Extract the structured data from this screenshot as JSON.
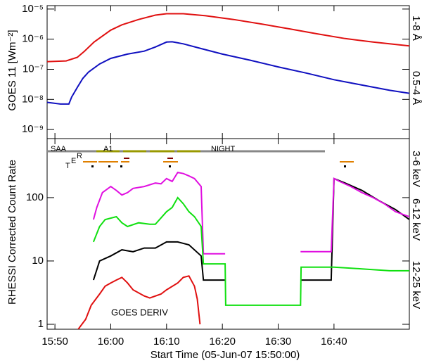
{
  "chart_data": [
    {
      "type": "line",
      "ylabel": "GOES 11 [Wm⁻²]",
      "log_y": true,
      "xlim": [
        -1.4,
        63.5
      ],
      "xticks": [
        0,
        10,
        20,
        30,
        40,
        50
      ],
      "ylim": [
        5e-10,
        1.3e-05
      ],
      "yticks": [
        {
          "value": 1e-09,
          "label": "10⁻⁹"
        },
        {
          "value": 1e-08,
          "label": "10⁻⁸"
        },
        {
          "value": 1e-07,
          "label": "10⁻⁷"
        },
        {
          "value": 1e-06,
          "label": "10⁻⁶"
        },
        {
          "value": 1e-05,
          "label": "10⁻⁵"
        }
      ],
      "series": [
        {
          "name": "1-8 Å",
          "color": "#e01010",
          "x": [
            -1.4,
            2,
            4,
            5.3,
            7,
            10,
            12,
            15,
            18,
            20,
            23,
            27,
            32,
            37,
            42,
            47,
            52,
            57,
            63.5
          ],
          "values": [
            1.8e-07,
            1.9e-07,
            2.5e-07,
            4e-07,
            8e-07,
            2e-06,
            3e-06,
            4.5e-06,
            6.3e-06,
            7e-06,
            7e-06,
            6e-06,
            4.5e-06,
            3.2e-06,
            2.2e-06,
            1.5e-06,
            1.05e-06,
            8e-07,
            6e-07
          ]
        },
        {
          "name": "0.5-4 Å",
          "color": "#1010c0",
          "x": [
            -1.4,
            1,
            2.5,
            3,
            4,
            5,
            6,
            8,
            10,
            13,
            16,
            18,
            20,
            21,
            23,
            26,
            30,
            35,
            40,
            45,
            50,
            55,
            60,
            63.5
          ],
          "values": [
            8e-09,
            7e-09,
            7e-09,
            1.2e-08,
            2.5e-08,
            5e-08,
            8e-08,
            1.5e-07,
            2.3e-07,
            3.2e-07,
            4e-07,
            5.5e-07,
            8e-07,
            8.2e-07,
            7e-07,
            5e-07,
            3.2e-07,
            2e-07,
            1.2e-07,
            7.5e-08,
            4.5e-08,
            3e-08,
            2e-08,
            1.6e-08
          ]
        }
      ]
    },
    {
      "type": "line",
      "ylabel": "RHESSI Corrected Count Rate",
      "xlabel": "Start Time (05-Jun-07 15:50:00)",
      "log_y": true,
      "xlim": [
        -1.4,
        63.5
      ],
      "xticks": [
        {
          "value": 0,
          "label": "15:50"
        },
        {
          "value": 10,
          "label": "16:00"
        },
        {
          "value": 20,
          "label": "16:10"
        },
        {
          "value": 30,
          "label": "16:20"
        },
        {
          "value": 40,
          "label": "16:30"
        },
        {
          "value": 50,
          "label": "16:40"
        }
      ],
      "ylim": [
        0.836,
        855
      ],
      "yticks": [
        1,
        10,
        100
      ],
      "series": [
        {
          "name": "3-6 keV",
          "color": "#000000",
          "x": [
            6.9,
            8,
            10,
            12,
            14,
            16,
            18,
            20,
            22,
            24,
            26.2,
            26.6,
            30.5,
            37,
            44,
            46,
            49.5,
            50,
            52,
            55,
            58,
            61,
            63.5
          ],
          "values": [
            5,
            10,
            12,
            15,
            14,
            16,
            16,
            20,
            20,
            18,
            12,
            5,
            5,
            null,
            5,
            5,
            5,
            200,
            170,
            130,
            90,
            65,
            45
          ]
        },
        {
          "name": "6-12 keV",
          "color": "#e010e0",
          "x": [
            6.9,
            7.5,
            8.5,
            10,
            11,
            12,
            13,
            14,
            16,
            18,
            19,
            20,
            21,
            22,
            23,
            24,
            25,
            26.2,
            26.6,
            28.5,
            30.5,
            37,
            44,
            46,
            49.5,
            50,
            51,
            53,
            55,
            57,
            59,
            61,
            63.5
          ],
          "values": [
            45,
            70,
            120,
            150,
            130,
            110,
            120,
            140,
            150,
            170,
            165,
            200,
            180,
            250,
            240,
            220,
            200,
            150,
            13,
            13,
            13,
            null,
            14,
            14,
            14,
            200,
            180,
            150,
            120,
            100,
            80,
            60,
            50
          ]
        },
        {
          "name": "12-25 keV",
          "color": "#10e010",
          "x": [
            6.9,
            8,
            9,
            11,
            12,
            13,
            15,
            17,
            18,
            20,
            21,
            22,
            23,
            24,
            25,
            26.2,
            26.6,
            30.5,
            30.6,
            44,
            44.1,
            50,
            55,
            60,
            63.5
          ],
          "values": [
            20,
            35,
            45,
            50,
            40,
            35,
            40,
            38,
            38,
            60,
            70,
            100,
            80,
            60,
            50,
            35,
            9,
            9,
            2,
            2,
            8,
            8,
            7.5,
            7,
            7
          ]
        },
        {
          "name": "GOES DERIV",
          "color": "#e01010",
          "x": [
            4,
            5.5,
            6.5,
            8,
            9,
            10,
            11,
            12,
            13,
            14,
            16,
            17,
            19,
            20,
            22,
            23,
            24,
            25,
            25.5,
            26
          ],
          "values": [
            0.8,
            1.2,
            2,
            3,
            4,
            4.5,
            5,
            5.5,
            4.5,
            3.5,
            2.8,
            2.6,
            3,
            3.5,
            4.5,
            5.5,
            5.8,
            4,
            2.5,
            1.0
          ]
        }
      ],
      "annotations": [
        {
          "text": "SAA",
          "color": "#888888"
        },
        {
          "text": "A1",
          "color": "#999900"
        },
        {
          "text": "NIGHT",
          "color": "#888888"
        },
        {
          "text": "T",
          "color": "#000000"
        },
        {
          "text": "E",
          "color": "#e08000"
        },
        {
          "text": "R",
          "color": "#800000"
        }
      ]
    }
  ]
}
